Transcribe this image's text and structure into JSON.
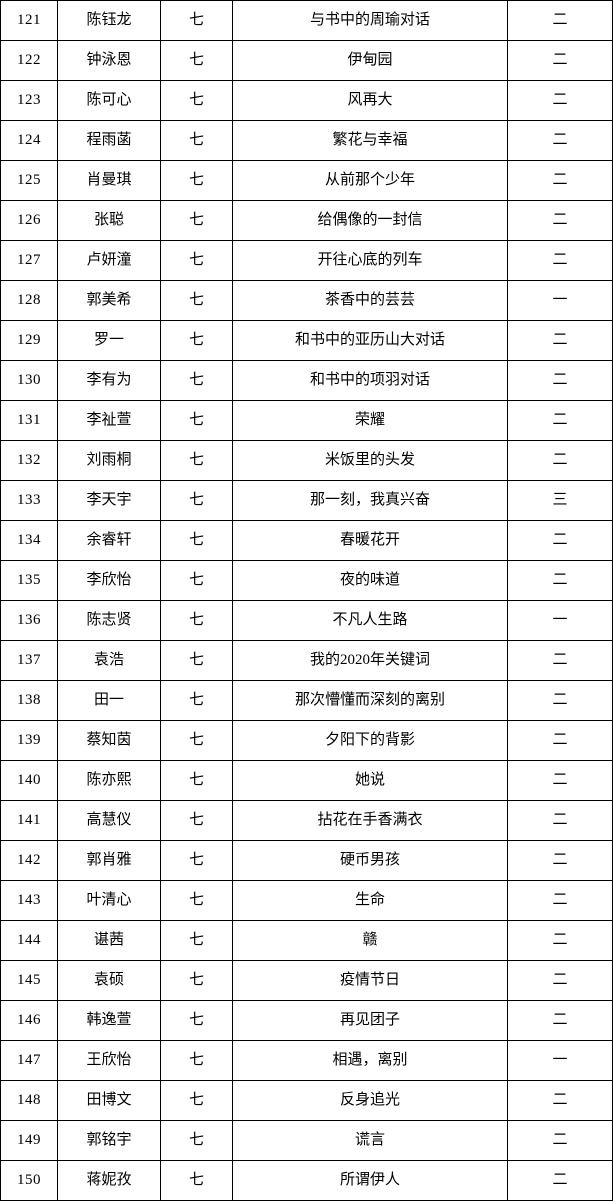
{
  "colors": {
    "background": "#ffffff",
    "border": "#000000",
    "text": "#000000"
  },
  "table": {
    "rows": [
      {
        "no": "121",
        "name": "陈钰龙",
        "grade": "七",
        "title": "与书中的周瑜对话",
        "award": "二"
      },
      {
        "no": "122",
        "name": "钟泳恩",
        "grade": "七",
        "title": "伊甸园",
        "award": "二"
      },
      {
        "no": "123",
        "name": "陈可心",
        "grade": "七",
        "title": "风再大",
        "award": "二"
      },
      {
        "no": "124",
        "name": "程雨菡",
        "grade": "七",
        "title": "繁花与幸福",
        "award": "二"
      },
      {
        "no": "125",
        "name": "肖曼琪",
        "grade": "七",
        "title": "从前那个少年",
        "award": "二"
      },
      {
        "no": "126",
        "name": "张聪",
        "grade": "七",
        "title": "给偶像的一封信",
        "award": "二"
      },
      {
        "no": "127",
        "name": "卢妍潼",
        "grade": "七",
        "title": "开往心底的列车",
        "award": "二"
      },
      {
        "no": "128",
        "name": "郭美希",
        "grade": "七",
        "title": "茶香中的芸芸",
        "award": "一"
      },
      {
        "no": "129",
        "name": "罗一",
        "grade": "七",
        "title": "和书中的亚历山大对话",
        "award": "二"
      },
      {
        "no": "130",
        "name": "李有为",
        "grade": "七",
        "title": "和书中的项羽对话",
        "award": "二"
      },
      {
        "no": "131",
        "name": "李祉萱",
        "grade": "七",
        "title": "荣耀",
        "award": "二"
      },
      {
        "no": "132",
        "name": "刘雨桐",
        "grade": "七",
        "title": "米饭里的头发",
        "award": "二"
      },
      {
        "no": "133",
        "name": "李天宇",
        "grade": "七",
        "title": "那一刻，我真兴奋",
        "award": "三"
      },
      {
        "no": "134",
        "name": "余睿轩",
        "grade": "七",
        "title": "春暖花开",
        "award": "二"
      },
      {
        "no": "135",
        "name": "李欣怡",
        "grade": "七",
        "title": "夜的味道",
        "award": "二"
      },
      {
        "no": "136",
        "name": "陈志贤",
        "grade": "七",
        "title": "不凡人生路",
        "award": "一"
      },
      {
        "no": "137",
        "name": "袁浩",
        "grade": "七",
        "title": "我的2020年关键词",
        "award": "二"
      },
      {
        "no": "138",
        "name": "田一",
        "grade": "七",
        "title": "那次懵懂而深刻的离别",
        "award": "二"
      },
      {
        "no": "139",
        "name": "蔡知茵",
        "grade": "七",
        "title": "夕阳下的背影",
        "award": "二"
      },
      {
        "no": "140",
        "name": "陈亦熙",
        "grade": "七",
        "title": "她说",
        "award": "二"
      },
      {
        "no": "141",
        "name": "高慧仪",
        "grade": "七",
        "title": "拈花在手香满衣",
        "award": "二"
      },
      {
        "no": "142",
        "name": "郭肖雅",
        "grade": "七",
        "title": "硬币男孩",
        "award": "二"
      },
      {
        "no": "143",
        "name": "叶清心",
        "grade": "七",
        "title": "生命",
        "award": "二"
      },
      {
        "no": "144",
        "name": "谌茜",
        "grade": "七",
        "title": "赣",
        "award": "二"
      },
      {
        "no": "145",
        "name": "袁硕",
        "grade": "七",
        "title": "疫情节日",
        "award": "二"
      },
      {
        "no": "146",
        "name": "韩逸萱",
        "grade": "七",
        "title": "再见团子",
        "award": "二"
      },
      {
        "no": "147",
        "name": "王欣怡",
        "grade": "七",
        "title": "相遇，离别",
        "award": "一"
      },
      {
        "no": "148",
        "name": "田博文",
        "grade": "七",
        "title": "反身追光",
        "award": "二"
      },
      {
        "no": "149",
        "name": "郭铭宇",
        "grade": "七",
        "title": "谎言",
        "award": "二"
      },
      {
        "no": "150",
        "name": "蒋妮孜",
        "grade": "七",
        "title": "所谓伊人",
        "award": "二"
      }
    ]
  }
}
